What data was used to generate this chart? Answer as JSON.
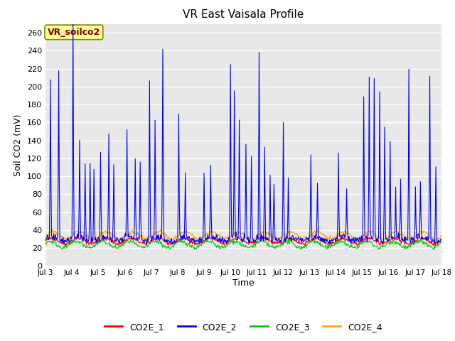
{
  "title": "VR East Vaisala Profile",
  "ylabel": "Soil CO2 (mV)",
  "xlabel": "Time",
  "annotation": "VR_soilco2",
  "ylim": [
    0,
    270
  ],
  "yticks": [
    0,
    20,
    40,
    60,
    80,
    100,
    120,
    140,
    160,
    180,
    200,
    220,
    240,
    260
  ],
  "xtick_labels": [
    "Jul 3",
    "Jul 4",
    "Jul 5",
    "Jul 6",
    "Jul 7",
    "Jul 8",
    "Jul 9",
    "Jul 10",
    "Jul 11",
    "Jul 12",
    "Jul 13",
    "Jul 14",
    "Jul 15",
    "Jul 16",
    "Jul 17",
    "Jul 18"
  ],
  "colors": {
    "CO2E_1": "#ff0000",
    "CO2E_2": "#0000ff",
    "CO2E_3": "#00cc00",
    "CO2E_4": "#ffa500"
  },
  "fig_bg": "#ffffff",
  "plot_bg": "#e8e8e8",
  "grid_color": "#ffffff",
  "annotation_bg": "#ffff99",
  "annotation_border": "#888800",
  "annotation_text_color": "#880000"
}
